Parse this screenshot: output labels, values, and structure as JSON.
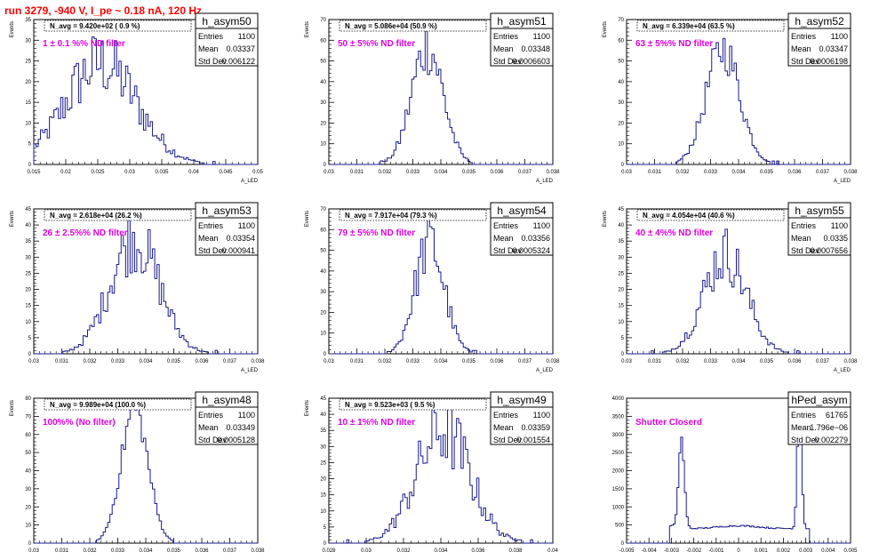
{
  "run_title": "run 3279,  -940 V, I_pe ~ 0.18 nA, 120 Hz",
  "colors": {
    "line": "#1a1a8c",
    "fill": "#c8c8f0",
    "annotation": "#e000e0",
    "title": "#ff0000",
    "text": "#000000"
  },
  "chart_data": [
    {
      "type": "histogram",
      "name": "h_asym50",
      "ylabel": "Events",
      "xlabel": "A_LED",
      "xlim": [
        0.015,
        0.05
      ],
      "ylim": [
        0,
        35
      ],
      "xticks": [
        "0.015",
        "0.02",
        "0.025",
        "0.03",
        "0.035",
        "0.04",
        "0.045",
        "0.05"
      ],
      "yticks": [
        "0",
        "5",
        "10",
        "15",
        "20",
        "25",
        "30",
        "35"
      ],
      "navg_label": "N_avg = 9.420e+02 ( 0.9 %)",
      "filter_label": "1 ± 0.1 %% ND filter",
      "stats": {
        "Entries": "1100",
        "Mean": "0.03337",
        "Std Dev": "0.006122"
      }
    },
    {
      "type": "histogram",
      "name": "h_asym51",
      "ylabel": "Events",
      "xlabel": "A_LED",
      "xlim": [
        0.03,
        0.038
      ],
      "ylim": [
        0,
        70
      ],
      "xticks": [
        "0.03",
        "0.031",
        "0.032",
        "0.033",
        "0.034",
        "0.035",
        "0.036",
        "0.037",
        "0.038"
      ],
      "yticks": [
        "0",
        "10",
        "20",
        "30",
        "40",
        "50",
        "60",
        "70"
      ],
      "navg_label": "N_avg = 5.086e+04 (50.9 %)",
      "filter_label": "50 ± 5%% ND filter",
      "stats": {
        "Entries": "1100",
        "Mean": "0.03348",
        "Std Dev": "0.0006603"
      }
    },
    {
      "type": "histogram",
      "name": "h_asym52",
      "ylabel": "Events",
      "xlabel": "A_LED",
      "xlim": [
        0.03,
        0.038
      ],
      "ylim": [
        0,
        70
      ],
      "xticks": [
        "0.03",
        "0.031",
        "0.032",
        "0.033",
        "0.034",
        "0.035",
        "0.036",
        "0.037",
        "0.038"
      ],
      "yticks": [
        "0",
        "10",
        "20",
        "30",
        "40",
        "50",
        "60",
        "70"
      ],
      "navg_label": "N_avg = 6.339e+04 (63.5 %)",
      "filter_label": "63 ± 5%% ND filter",
      "stats": {
        "Entries": "1100",
        "Mean": "0.03347",
        "Std Dev": "0.0006198"
      }
    },
    {
      "type": "histogram",
      "name": "h_asym53",
      "ylabel": "Events",
      "xlabel": "A_LED",
      "xlim": [
        0.03,
        0.038
      ],
      "ylim": [
        0,
        45
      ],
      "xticks": [
        "0.03",
        "0.031",
        "0.032",
        "0.033",
        "0.034",
        "0.035",
        "0.036",
        "0.037",
        "0.038"
      ],
      "yticks": [
        "0",
        "5",
        "10",
        "15",
        "20",
        "25",
        "30",
        "35",
        "40",
        "45"
      ],
      "navg_label": "N_avg = 2.618e+04 (26.2 %)",
      "filter_label": "26 ± 2.5%% ND filter",
      "stats": {
        "Entries": "1100",
        "Mean": "0.03354",
        "Std Dev": "0.000941"
      }
    },
    {
      "type": "histogram",
      "name": "h_asym54",
      "ylabel": "Events",
      "xlabel": "A_LED",
      "xlim": [
        0.03,
        0.038
      ],
      "ylim": [
        0,
        70
      ],
      "xticks": [
        "0.03",
        "0.031",
        "0.032",
        "0.033",
        "0.034",
        "0.035",
        "0.036",
        "0.037",
        "0.038"
      ],
      "yticks": [
        "0",
        "10",
        "20",
        "30",
        "40",
        "50",
        "60",
        "70"
      ],
      "navg_label": "N_avg = 7.917e+04 (79.3 %)",
      "filter_label": "79 ± 5%% ND filter",
      "stats": {
        "Entries": "1100",
        "Mean": "0.03356",
        "Std Dev": "0.0005324"
      }
    },
    {
      "type": "histogram",
      "name": "h_asym55",
      "ylabel": "Events",
      "xlabel": "A_LED",
      "xlim": [
        0.03,
        0.038
      ],
      "ylim": [
        0,
        45
      ],
      "xticks": [
        "0.03",
        "0.031",
        "0.032",
        "0.033",
        "0.034",
        "0.035",
        "0.036",
        "0.037",
        "0.038"
      ],
      "yticks": [
        "0",
        "5",
        "10",
        "15",
        "20",
        "25",
        "30",
        "35",
        "40",
        "45"
      ],
      "navg_label": "N_avg = 4.054e+04 (40.6 %)",
      "filter_label": "40 ± 4%% ND filter",
      "stats": {
        "Entries": "1100",
        "Mean": "0.0335",
        "Std Dev": "0.0007656"
      }
    },
    {
      "type": "histogram",
      "name": "h_asym48",
      "ylabel": "Events",
      "xlabel": "A_LED",
      "xlim": [
        0.03,
        0.038
      ],
      "ylim": [
        0,
        80
      ],
      "xticks": [
        "0.03",
        "0.031",
        "0.032",
        "0.033",
        "0.034",
        "0.035",
        "0.036",
        "0.037",
        "0.038"
      ],
      "yticks": [
        "0",
        "10",
        "20",
        "30",
        "40",
        "50",
        "60",
        "70",
        "80"
      ],
      "navg_label": "N_avg = 9.989e+04 (100.0 %)",
      "filter_label": "100%% (No filter)",
      "stats": {
        "Entries": "1100",
        "Mean": "0.03349",
        "Std Dev": "0.0005128"
      }
    },
    {
      "type": "histogram",
      "name": "h_asym49",
      "ylabel": "Events",
      "xlabel": "A_LED",
      "xlim": [
        0.027,
        0.04
      ],
      "ylim": [
        0,
        45
      ],
      "xticks": [
        "0.028",
        "0.03",
        "0.032",
        "0.034",
        "0.036",
        "0.038",
        "0.04"
      ],
      "yticks": [
        "0",
        "5",
        "10",
        "15",
        "20",
        "25",
        "30",
        "35",
        "40",
        "45"
      ],
      "navg_label": "N_avg = 9.523e+03 ( 9.5 %)",
      "filter_label": "10 ± 1%% ND filter",
      "stats": {
        "Entries": "1100",
        "Mean": "0.03359",
        "Std Dev": "0.001554"
      }
    },
    {
      "type": "histogram",
      "name": "hPed_asym",
      "ylabel": "",
      "xlabel": "",
      "xlim": [
        -0.005,
        0.005
      ],
      "ylim": [
        0,
        4000
      ],
      "xticks": [
        "-0.005",
        "-0.004",
        "-0.003",
        "-0.002",
        "-0.001",
        "0",
        "0.001",
        "0.002",
        "0.003",
        "0.004",
        "0.005"
      ],
      "yticks": [
        "0",
        "500",
        "1000",
        "1500",
        "2000",
        "2500",
        "3000",
        "3500",
        "4000"
      ],
      "navg_label": "",
      "filter_label": "Shutter Closerd",
      "stats": {
        "Entries": "61765",
        "Mean": "1.796e−06",
        "Std Dev": "0.002279"
      }
    }
  ]
}
